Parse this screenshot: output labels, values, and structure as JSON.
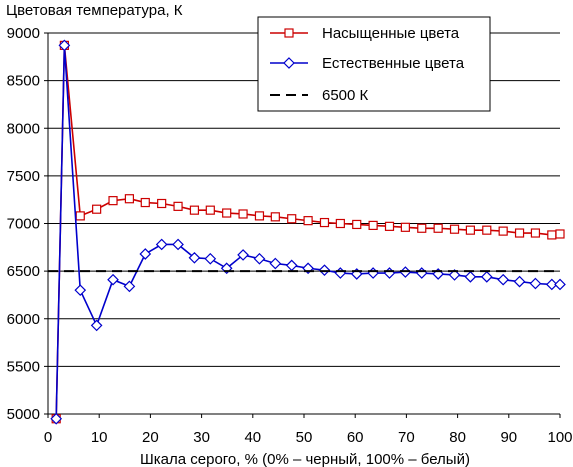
{
  "chart_data": {
    "type": "line",
    "title": "Цветовая температура, К",
    "xlabel": "Шкала серого, % (0% – черный, 100% – белый)",
    "ylabel": "",
    "xlim": [
      0,
      100
    ],
    "ylim": [
      5000,
      9000
    ],
    "xticks": [
      0,
      10,
      20,
      30,
      40,
      50,
      60,
      70,
      80,
      90,
      100
    ],
    "yticks": [
      5000,
      5500,
      6000,
      6500,
      7000,
      7500,
      8000,
      8500,
      9000
    ],
    "grid": "horizontal",
    "legend_position": "top-right",
    "series": [
      {
        "name": "Насыщенные цвета",
        "color": "#cc0000",
        "marker": "square",
        "x": [
          1.6,
          3.2,
          6.3,
          9.5,
          12.7,
          15.9,
          19,
          22.2,
          25.4,
          28.6,
          31.7,
          34.9,
          38.1,
          41.3,
          44.4,
          47.6,
          50.8,
          54,
          57.1,
          60.3,
          63.5,
          66.7,
          69.8,
          73,
          76.2,
          79.4,
          82.5,
          85.7,
          88.9,
          92.1,
          95.2,
          98.4,
          100
        ],
        "values": [
          4950,
          8870,
          7080,
          7150,
          7240,
          7260,
          7220,
          7210,
          7180,
          7140,
          7140,
          7110,
          7100,
          7080,
          7070,
          7050,
          7030,
          7010,
          7000,
          6990,
          6980,
          6970,
          6960,
          6950,
          6950,
          6940,
          6930,
          6930,
          6920,
          6900,
          6900,
          6880,
          6890
        ]
      },
      {
        "name": "Естественные цвета",
        "color": "#0000cc",
        "marker": "diamond",
        "x": [
          1.6,
          3.2,
          6.3,
          9.5,
          12.7,
          15.9,
          19,
          22.2,
          25.4,
          28.6,
          31.7,
          34.9,
          38.1,
          41.3,
          44.4,
          47.6,
          50.8,
          54,
          57.1,
          60.3,
          63.5,
          66.7,
          69.8,
          73,
          76.2,
          79.4,
          82.5,
          85.7,
          88.9,
          92.1,
          95.2,
          98.4,
          100
        ],
        "values": [
          4950,
          8870,
          6300,
          5930,
          6410,
          6340,
          6680,
          6780,
          6780,
          6640,
          6630,
          6530,
          6670,
          6630,
          6580,
          6560,
          6530,
          6510,
          6480,
          6470,
          6480,
          6480,
          6490,
          6480,
          6470,
          6460,
          6440,
          6440,
          6410,
          6390,
          6370,
          6360,
          6360
        ]
      },
      {
        "name": "6500 К",
        "color": "#000000",
        "style": "dashed",
        "x": [
          0,
          100
        ],
        "values": [
          6500,
          6500
        ]
      }
    ]
  }
}
